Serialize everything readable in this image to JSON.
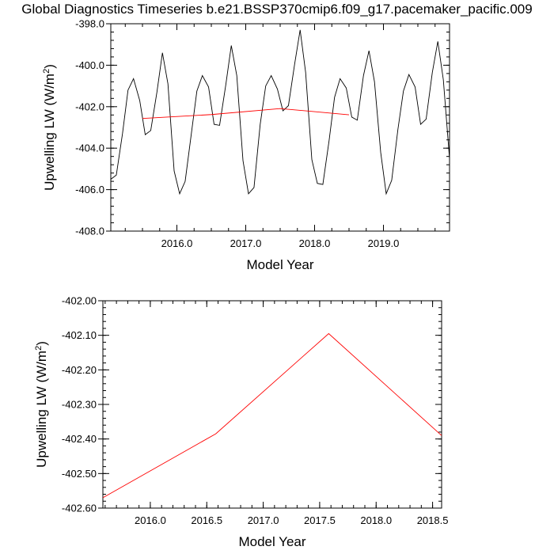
{
  "title": "Global Diagnostics Timeseries b.e21.BSSP370cmip6.f09_g17.pacemaker_pacific.009",
  "chart_data": [
    {
      "type": "line",
      "xlabel": "Model Year",
      "ylabel": "Upwelling LW (W/m",
      "ylabel_sup": "2",
      "ylabel_end": ")",
      "xlim": [
        2015.04,
        2019.96
      ],
      "ylim": [
        -408.0,
        -398.0
      ],
      "xticks": [
        2016.0,
        2017.0,
        2018.0,
        2019.0
      ],
      "xtick_labels": [
        "2016.0",
        "2017.0",
        "2018.0",
        "2019.0"
      ],
      "yticks": [
        -408.0,
        -406.0,
        -404.0,
        -402.0,
        -400.0,
        -398.0
      ],
      "ytick_labels": [
        "-408.0",
        "-406.0",
        "-404.0",
        "-402.0",
        "-400.0",
        "-398.0"
      ],
      "colors": {
        "monthly": "#000000",
        "annual": "#ff0000"
      },
      "series": [
        {
          "x": [
            2015.04,
            2015.12,
            2015.21,
            2015.29,
            2015.37,
            2015.46,
            2015.54,
            2015.62,
            2015.71,
            2015.79,
            2015.87,
            2015.96,
            2016.04,
            2016.12,
            2016.21,
            2016.29,
            2016.37,
            2016.46,
            2016.54,
            2016.62,
            2016.71,
            2016.79,
            2016.87,
            2016.96,
            2017.04,
            2017.12,
            2017.21,
            2017.29,
            2017.37,
            2017.46,
            2017.54,
            2017.62,
            2017.71,
            2017.79,
            2017.87,
            2017.96,
            2018.04,
            2018.12,
            2018.21,
            2018.29,
            2018.37,
            2018.46,
            2018.54,
            2018.62,
            2018.71,
            2018.79,
            2018.87,
            2018.96,
            2019.04,
            2019.12,
            2019.21,
            2019.29,
            2019.37,
            2019.46,
            2019.54,
            2019.62,
            2019.71,
            2019.79,
            2019.87,
            2019.96
          ],
          "values": [
            -405.5,
            -405.3,
            -403.3,
            -401.2,
            -400.65,
            -401.7,
            -403.35,
            -403.15,
            -401.3,
            -399.4,
            -400.9,
            -405.1,
            -406.2,
            -405.6,
            -403.3,
            -401.25,
            -400.5,
            -401.05,
            -402.85,
            -402.9,
            -400.95,
            -399.05,
            -400.5,
            -404.6,
            -406.2,
            -405.9,
            -402.85,
            -401.0,
            -400.5,
            -401.15,
            -402.2,
            -401.95,
            -399.95,
            -398.3,
            -400.35,
            -404.55,
            -405.7,
            -405.75,
            -403.65,
            -401.55,
            -400.65,
            -401.1,
            -402.5,
            -402.65,
            -400.5,
            -399.3,
            -400.8,
            -404.2,
            -406.2,
            -405.55,
            -403.1,
            -401.25,
            -400.45,
            -401.05,
            -402.85,
            -402.6,
            -400.35,
            -398.85,
            -400.7,
            -404.5
          ]
        },
        {
          "x": [
            2015.5,
            2016.5,
            2017.5,
            2018.5
          ],
          "values": [
            -402.57,
            -402.38,
            -402.09,
            -402.39
          ]
        }
      ]
    },
    {
      "type": "line",
      "xlabel": "Model Year",
      "ylabel": "Upwelling LW (W/m",
      "ylabel_sup": "2",
      "ylabel_end": ")",
      "xlim": [
        2015.58,
        2018.58
      ],
      "ylim": [
        -402.6,
        -402.0
      ],
      "xticks": [
        2016.0,
        2016.5,
        2017.0,
        2017.5,
        2018.0,
        2018.5
      ],
      "xtick_labels": [
        "2016.0",
        "2016.5",
        "2017.0",
        "2017.5",
        "2018.0",
        "2018.5"
      ],
      "yticks": [
        -402.6,
        -402.5,
        -402.4,
        -402.3,
        -402.2,
        -402.1,
        -402.0
      ],
      "ytick_labels": [
        "-402.60",
        "-402.50",
        "-402.40",
        "-402.30",
        "-402.20",
        "-402.10",
        "-402.00"
      ],
      "colors": {
        "annual": "#ff0000"
      },
      "series": [
        {
          "x": [
            2015.58,
            2016.58,
            2017.58,
            2018.58
          ],
          "values": [
            -402.57,
            -402.385,
            -402.095,
            -402.39
          ]
        }
      ]
    }
  ]
}
